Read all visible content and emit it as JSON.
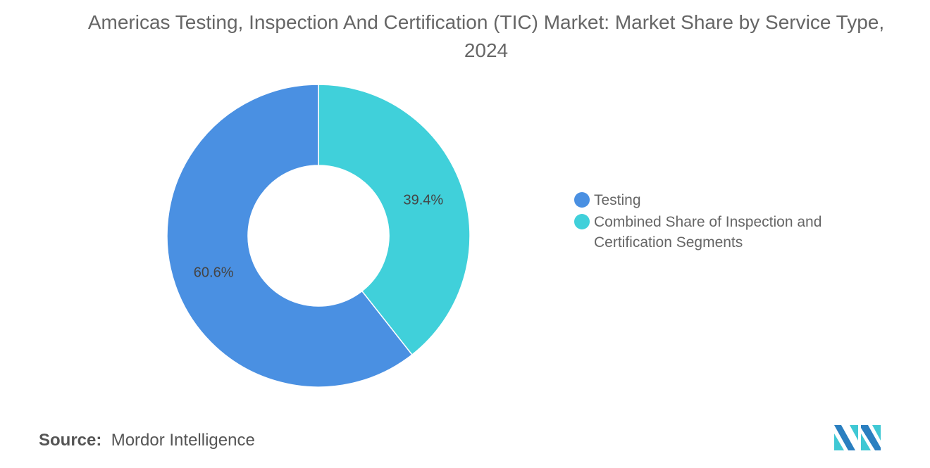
{
  "chart_data": {
    "type": "pie",
    "donut": true,
    "title": "Americas Testing, Inspection And Certification (TIC) Market: Market Share by Service Type, 2024",
    "slices": [
      {
        "label": "Combined Share of Inspection and Certification Segments",
        "value": 39.4,
        "display": "39.4%",
        "color": "#40d0da"
      },
      {
        "label": "Testing",
        "value": 60.6,
        "display": "60.6%",
        "color": "#4a90e2"
      }
    ],
    "legend": [
      {
        "label": "Testing",
        "color": "#4a90e2"
      },
      {
        "label": "Combined Share of Inspection and Certification Segments",
        "color": "#40d0da"
      }
    ],
    "legend_position": "right"
  },
  "source": {
    "label": "Source:",
    "value": "Mordor Intelligence"
  },
  "logo": {
    "text": "Mordor Intelligence"
  }
}
